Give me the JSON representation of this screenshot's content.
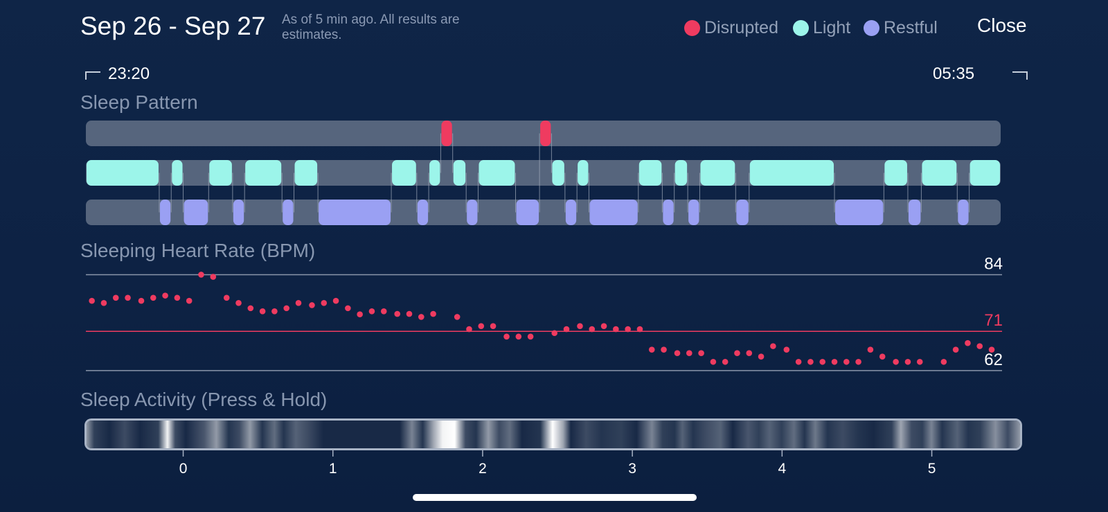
{
  "header": {
    "title": "Sep 26 - Sep 27",
    "subtitle": "As of 5 min ago. All results are estimates.",
    "close_label": "Close"
  },
  "legend": [
    {
      "label": "Disrupted",
      "color": "#ef3b60"
    },
    {
      "label": "Light",
      "color": "#9cf5ea"
    },
    {
      "label": "Restful",
      "color": "#9aa0f3"
    }
  ],
  "time_range": {
    "start": "23:20",
    "end": "05:35"
  },
  "sections": {
    "sleep_pattern": "Sleep Pattern",
    "heart_rate": "Sleeping Heart Rate (BPM)",
    "activity": "Sleep Activity (Press & Hold)"
  },
  "colors": {
    "disrupted": "#ef3b60",
    "light": "#9cf5ea",
    "restful": "#9aa0f3",
    "track": "#56657d",
    "background": "#0f2547"
  },
  "sleep_pattern": {
    "axis_hours": [
      -0.65,
      5.46
    ],
    "segments": [
      {
        "stage": "light",
        "start": -0.65,
        "end": -0.16
      },
      {
        "stage": "restful",
        "start": -0.16,
        "end": -0.08
      },
      {
        "stage": "light",
        "start": -0.08,
        "end": 0.0
      },
      {
        "stage": "restful",
        "start": 0.0,
        "end": 0.17
      },
      {
        "stage": "light",
        "start": 0.17,
        "end": 0.33
      },
      {
        "stage": "restful",
        "start": 0.33,
        "end": 0.41
      },
      {
        "stage": "light",
        "start": 0.41,
        "end": 0.66
      },
      {
        "stage": "restful",
        "start": 0.66,
        "end": 0.74
      },
      {
        "stage": "light",
        "start": 0.74,
        "end": 0.9
      },
      {
        "stage": "restful",
        "start": 0.9,
        "end": 1.39
      },
      {
        "stage": "light",
        "start": 1.39,
        "end": 1.56
      },
      {
        "stage": "restful",
        "start": 1.56,
        "end": 1.64
      },
      {
        "stage": "light",
        "start": 1.64,
        "end": 1.72
      },
      {
        "stage": "disrupted",
        "start": 1.72,
        "end": 1.8
      },
      {
        "stage": "light",
        "start": 1.8,
        "end": 1.89
      },
      {
        "stage": "restful",
        "start": 1.89,
        "end": 1.97
      },
      {
        "stage": "light",
        "start": 1.97,
        "end": 2.22
      },
      {
        "stage": "restful",
        "start": 2.22,
        "end": 2.38
      },
      {
        "stage": "disrupted",
        "start": 2.38,
        "end": 2.46
      },
      {
        "stage": "light",
        "start": 2.46,
        "end": 2.55
      },
      {
        "stage": "restful",
        "start": 2.55,
        "end": 2.63
      },
      {
        "stage": "light",
        "start": 2.63,
        "end": 2.71
      },
      {
        "stage": "restful",
        "start": 2.71,
        "end": 3.04
      },
      {
        "stage": "light",
        "start": 3.04,
        "end": 3.2
      },
      {
        "stage": "restful",
        "start": 3.2,
        "end": 3.28
      },
      {
        "stage": "light",
        "start": 3.28,
        "end": 3.37
      },
      {
        "stage": "restful",
        "start": 3.37,
        "end": 3.45
      },
      {
        "stage": "light",
        "start": 3.45,
        "end": 3.69
      },
      {
        "stage": "restful",
        "start": 3.69,
        "end": 3.78
      },
      {
        "stage": "light",
        "start": 3.78,
        "end": 4.35
      },
      {
        "stage": "restful",
        "start": 4.35,
        "end": 4.68
      },
      {
        "stage": "light",
        "start": 4.68,
        "end": 4.84
      },
      {
        "stage": "restful",
        "start": 4.84,
        "end": 4.93
      },
      {
        "stage": "light",
        "start": 4.93,
        "end": 5.17
      },
      {
        "stage": "restful",
        "start": 5.17,
        "end": 5.25
      },
      {
        "stage": "light",
        "start": 5.25,
        "end": 5.46
      }
    ]
  },
  "chart_data": {
    "type": "scatter",
    "title": "Sleeping Heart Rate (BPM)",
    "xlabel": "",
    "ylabel": "",
    "xlim": [
      -0.65,
      5.46
    ],
    "xticks": [
      0,
      1,
      2,
      3,
      4,
      5
    ],
    "reference_lines": [
      {
        "value": 84,
        "label": "84",
        "color": "#8a96aa"
      },
      {
        "value": 71,
        "label": "71",
        "color": "#ef3b60"
      },
      {
        "value": 62,
        "label": "62",
        "color": "#8a96aa"
      }
    ],
    "ylim": [
      61.5,
      85.5
    ],
    "series": [
      {
        "color": "#ef3b60",
        "points": [
          [
            -0.61,
            78.0
          ],
          [
            -0.53,
            77.5
          ],
          [
            -0.45,
            78.7
          ],
          [
            -0.37,
            78.7
          ],
          [
            -0.28,
            78.0
          ],
          [
            -0.2,
            78.7
          ],
          [
            -0.12,
            79.2
          ],
          [
            -0.04,
            78.7
          ],
          [
            0.04,
            78.0
          ],
          [
            0.12,
            84.0
          ],
          [
            0.2,
            83.5
          ],
          [
            0.29,
            78.7
          ],
          [
            0.37,
            77.5
          ],
          [
            0.45,
            76.3
          ],
          [
            0.53,
            75.6
          ],
          [
            0.61,
            75.6
          ],
          [
            0.69,
            76.3
          ],
          [
            0.77,
            77.5
          ],
          [
            0.86,
            77.0
          ],
          [
            0.94,
            77.5
          ],
          [
            1.02,
            78.0
          ],
          [
            1.1,
            76.3
          ],
          [
            1.18,
            74.9
          ],
          [
            1.26,
            75.6
          ],
          [
            1.34,
            75.6
          ],
          [
            1.43,
            75.0
          ],
          [
            1.51,
            75.0
          ],
          [
            1.59,
            74.3
          ],
          [
            1.67,
            75.0
          ],
          [
            1.83,
            74.3
          ],
          [
            1.91,
            71.5
          ],
          [
            1.99,
            72.2
          ],
          [
            2.07,
            72.2
          ],
          [
            2.16,
            69.8
          ],
          [
            2.24,
            69.8
          ],
          [
            2.32,
            69.8
          ],
          [
            2.48,
            70.6
          ],
          [
            2.56,
            71.5
          ],
          [
            2.65,
            72.2
          ],
          [
            2.73,
            71.5
          ],
          [
            2.81,
            72.2
          ],
          [
            2.89,
            71.5
          ],
          [
            2.97,
            71.5
          ],
          [
            3.05,
            71.5
          ],
          [
            3.13,
            66.8
          ],
          [
            3.21,
            66.8
          ],
          [
            3.3,
            66.0
          ],
          [
            3.38,
            66.0
          ],
          [
            3.46,
            66.0
          ],
          [
            3.54,
            64.0
          ],
          [
            3.62,
            64.0
          ],
          [
            3.7,
            66.0
          ],
          [
            3.78,
            66.0
          ],
          [
            3.86,
            65.2
          ],
          [
            3.94,
            67.6
          ],
          [
            4.03,
            66.8
          ],
          [
            4.11,
            64.0
          ],
          [
            4.19,
            64.0
          ],
          [
            4.27,
            64.0
          ],
          [
            4.35,
            64.0
          ],
          [
            4.43,
            64.0
          ],
          [
            4.51,
            64.0
          ],
          [
            4.59,
            66.8
          ],
          [
            4.67,
            65.2
          ],
          [
            4.76,
            64.0
          ],
          [
            4.84,
            64.0
          ],
          [
            4.92,
            64.0
          ],
          [
            5.08,
            64.0
          ],
          [
            5.16,
            66.8
          ],
          [
            5.24,
            68.3
          ],
          [
            5.32,
            67.6
          ],
          [
            5.4,
            66.8
          ]
        ]
      }
    ]
  },
  "activity": {
    "levels": [
      [
        -0.65,
        0.55
      ],
      [
        -0.6,
        0.15
      ],
      [
        -0.5,
        0.05
      ],
      [
        -0.4,
        0.2
      ],
      [
        -0.3,
        0.05
      ],
      [
        -0.18,
        0.15
      ],
      [
        -0.12,
        0.95
      ],
      [
        -0.07,
        0.2
      ],
      [
        0.0,
        0.05
      ],
      [
        0.12,
        0.25
      ],
      [
        0.2,
        0.55
      ],
      [
        0.28,
        0.1
      ],
      [
        0.35,
        0.2
      ],
      [
        0.42,
        0.55
      ],
      [
        0.5,
        0.1
      ],
      [
        0.58,
        0.35
      ],
      [
        0.64,
        0.1
      ],
      [
        0.72,
        0.3
      ],
      [
        0.8,
        0.2
      ],
      [
        0.9,
        0.05
      ],
      [
        1.2,
        0.05
      ],
      [
        1.4,
        0.05
      ],
      [
        1.48,
        0.45
      ],
      [
        1.55,
        0.1
      ],
      [
        1.62,
        0.6
      ],
      [
        1.68,
        0.95
      ],
      [
        1.76,
        1.0
      ],
      [
        1.83,
        0.2
      ],
      [
        1.9,
        0.1
      ],
      [
        1.98,
        0.55
      ],
      [
        2.05,
        0.2
      ],
      [
        2.12,
        0.35
      ],
      [
        2.2,
        0.05
      ],
      [
        2.32,
        0.1
      ],
      [
        2.4,
        1.0
      ],
      [
        2.47,
        0.6
      ],
      [
        2.52,
        0.05
      ],
      [
        2.62,
        0.2
      ],
      [
        2.72,
        0.1
      ],
      [
        2.85,
        0.15
      ],
      [
        2.95,
        0.05
      ],
      [
        3.05,
        0.45
      ],
      [
        3.12,
        0.15
      ],
      [
        3.2,
        0.1
      ],
      [
        3.25,
        0.3
      ],
      [
        3.32,
        0.1
      ],
      [
        3.4,
        0.2
      ],
      [
        3.5,
        0.3
      ],
      [
        3.58,
        0.05
      ],
      [
        3.68,
        0.25
      ],
      [
        3.75,
        0.15
      ],
      [
        3.82,
        0.3
      ],
      [
        3.9,
        0.15
      ],
      [
        3.98,
        0.35
      ],
      [
        4.05,
        0.1
      ],
      [
        4.12,
        0.4
      ],
      [
        4.2,
        0.1
      ],
      [
        4.3,
        0.2
      ],
      [
        4.4,
        0.1
      ],
      [
        4.5,
        0.05
      ],
      [
        4.62,
        0.15
      ],
      [
        4.68,
        0.6
      ],
      [
        4.75,
        0.2
      ],
      [
        4.82,
        0.15
      ],
      [
        4.88,
        0.45
      ],
      [
        4.95,
        0.1
      ],
      [
        5.05,
        0.3
      ],
      [
        5.12,
        0.1
      ],
      [
        5.2,
        0.15
      ],
      [
        5.3,
        0.5
      ],
      [
        5.38,
        0.2
      ],
      [
        5.46,
        0.55
      ]
    ]
  },
  "xaxis": {
    "ticks": [
      "0",
      "1",
      "2",
      "3",
      "4",
      "5"
    ]
  }
}
